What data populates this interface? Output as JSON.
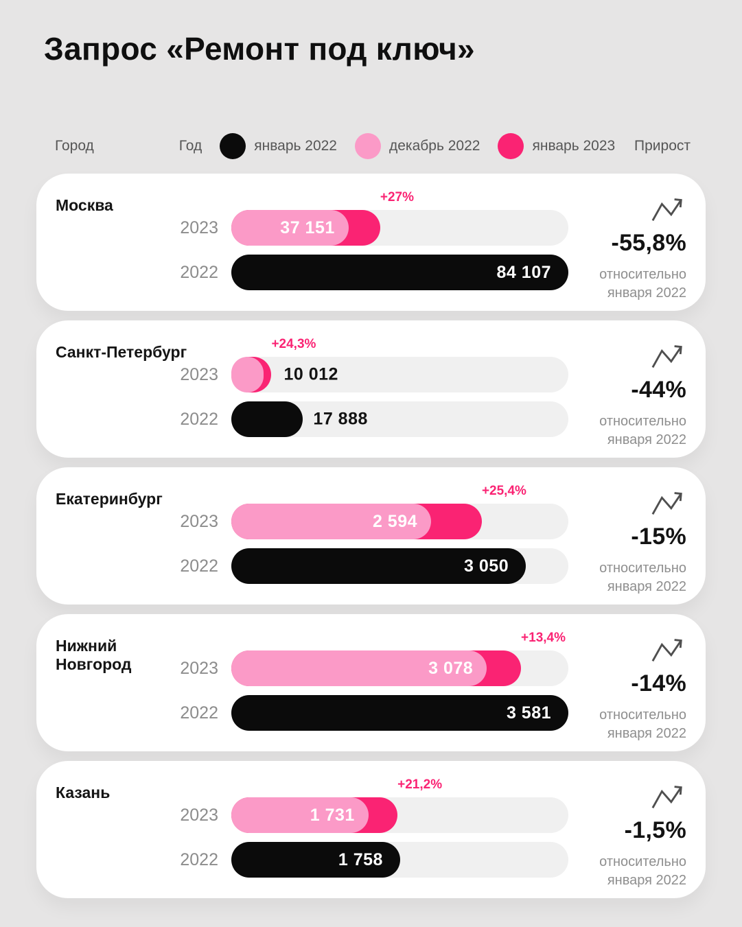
{
  "title": "Запрос «Ремонт под ключ»",
  "header": {
    "city_label": "Город",
    "year_label": "Год",
    "growth_label": "Прирост",
    "legend": [
      {
        "icon": "jan-2022-dot-icon",
        "label": "январь 2022",
        "color": "#0b0b0b"
      },
      {
        "icon": "dec-2022-dot-icon",
        "label": "декабрь 2022",
        "color": "#fb9ac7"
      },
      {
        "icon": "jan-2023-dot-icon",
        "label": "январь 2023",
        "color": "#fa2373"
      }
    ]
  },
  "chart_data": {
    "type": "bar",
    "orientation": "horizontal",
    "title": "Запрос «Ремонт под ключ»",
    "series": [
      {
        "name": "январь 2022",
        "color": "#0b0b0b"
      },
      {
        "name": "декабрь 2022",
        "color": "#fb9ac7"
      },
      {
        "name": "январь 2023",
        "color": "#fa2373"
      }
    ],
    "row_labels": {
      "top": "2023",
      "bottom": "2022"
    },
    "delta_caption": [
      "относительно",
      "января 2022"
    ],
    "cities": [
      {
        "name": "Москва",
        "jan_2023": 37151,
        "jan_2023_display": "37 151",
        "jan_2022": 84107,
        "jan_2022_display": "84 107",
        "growth_dec_to_jan": "+27%",
        "growth_pct": 27,
        "delta_vs_jan_2022": "-55,8%",
        "scale_max": 84107,
        "values_inside_bars": true
      },
      {
        "name": "Санкт-Петербург",
        "jan_2023": 10012,
        "jan_2023_display": "10 012",
        "jan_2022": 17888,
        "jan_2022_display": "17 888",
        "growth_dec_to_jan": "+24,3%",
        "growth_pct": 24.3,
        "delta_vs_jan_2022": "-44%",
        "scale_max": 84107,
        "values_inside_bars": false
      },
      {
        "name": "Екатеринбург",
        "jan_2023": 2594,
        "jan_2023_display": "2 594",
        "jan_2022": 3050,
        "jan_2022_display": "3 050",
        "growth_dec_to_jan": "+25,4%",
        "growth_pct": 25.4,
        "delta_vs_jan_2022": "-15%",
        "scale_max": 3490,
        "values_inside_bars": true
      },
      {
        "name": "Нижний Новгород",
        "jan_2023": 3078,
        "jan_2023_display": "3 078",
        "jan_2022": 3581,
        "jan_2022_display": "3 581",
        "growth_dec_to_jan": "+13,4%",
        "growth_pct": 13.4,
        "delta_vs_jan_2022": "-14%",
        "scale_max": 3581,
        "values_inside_bars": true
      },
      {
        "name": "Казань",
        "jan_2023": 1731,
        "jan_2023_display": "1 731",
        "jan_2022": 1758,
        "jan_2022_display": "1 758",
        "growth_dec_to_jan": "+21,2%",
        "growth_pct": 21.2,
        "delta_vs_jan_2022": "-1,5%",
        "scale_max": 3510,
        "values_inside_bars": true
      }
    ]
  }
}
